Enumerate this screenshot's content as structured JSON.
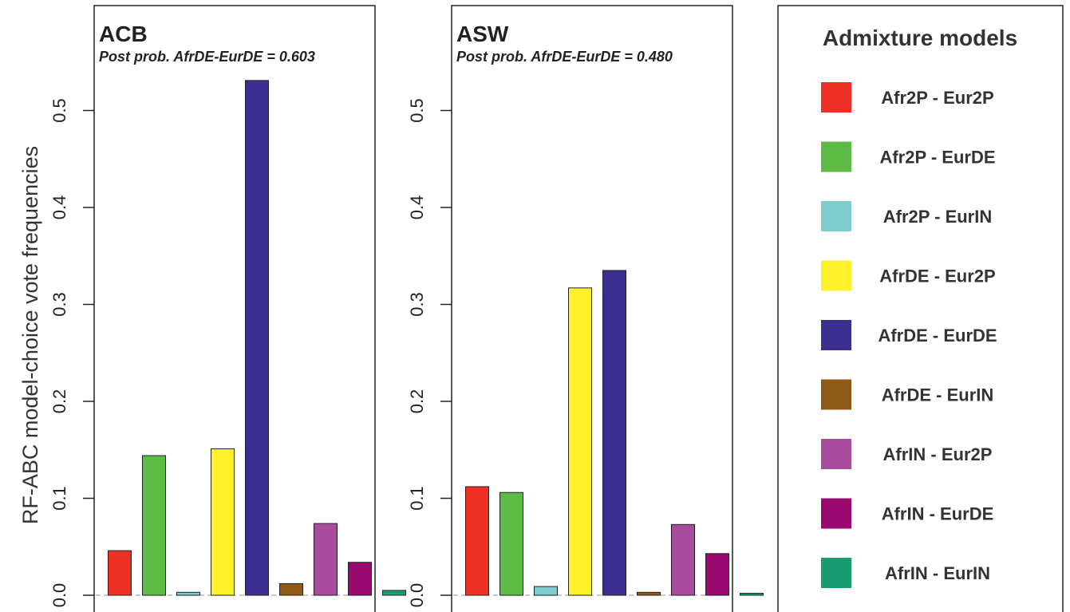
{
  "figure": {
    "ylabel": "RF-ABC model-choice vote frequencies"
  },
  "legend": {
    "title": "Admixture models",
    "items": [
      {
        "label": "Afr2P - Eur2P",
        "color": "#ee3124"
      },
      {
        "label": "Afr2P - EurDE",
        "color": "#5dbb46"
      },
      {
        "label": "Afr2P - EurIN",
        "color": "#7fcdcd"
      },
      {
        "label": "AfrDE - Eur2P",
        "color": "#fff12b"
      },
      {
        "label": "AfrDE - EurDE",
        "color": "#3a2f90"
      },
      {
        "label": "AfrDE - EurIN",
        "color": "#8f5a17"
      },
      {
        "label": "AfrIN - Eur2P",
        "color": "#a84d9e"
      },
      {
        "label": "AfrIN - EurDE",
        "color": "#98086e"
      },
      {
        "label": "AfrIN - EurIN",
        "color": "#1a9c72"
      }
    ]
  },
  "chart_data": [
    {
      "type": "bar",
      "title": "ACB",
      "subtitle": "Post prob. AfrDE-EurDE = 0.603",
      "categories": [
        "Afr2P - Eur2P",
        "Afr2P - EurDE",
        "Afr2P - EurIN",
        "AfrDE - Eur2P",
        "AfrDE - EurDE",
        "AfrDE - EurIN",
        "AfrIN - Eur2P",
        "AfrIN - EurDE",
        "AfrIN - EurIN"
      ],
      "values": [
        0.046,
        0.144,
        0.003,
        0.151,
        0.531,
        0.012,
        0.074,
        0.034,
        0.005
      ],
      "ylim": [
        0,
        0.56
      ],
      "yticks": [
        "0.0",
        "0.1",
        "0.2",
        "0.3",
        "0.4",
        "0.5"
      ],
      "ylabel": "RF-ABC model-choice vote frequencies",
      "grid": false
    },
    {
      "type": "bar",
      "title": "ASW",
      "subtitle": "Post prob. AfrDE-EurDE = 0.480",
      "categories": [
        "Afr2P - Eur2P",
        "Afr2P - EurDE",
        "Afr2P - EurIN",
        "AfrDE - Eur2P",
        "AfrDE - EurDE",
        "AfrDE - EurIN",
        "AfrIN - Eur2P",
        "AfrIN - EurDE",
        "AfrIN - EurIN"
      ],
      "values": [
        0.112,
        0.106,
        0.009,
        0.317,
        0.335,
        0.003,
        0.073,
        0.043,
        0.002
      ],
      "ylim": [
        0,
        0.56
      ],
      "yticks": [
        "0.0",
        "0.1",
        "0.2",
        "0.3",
        "0.4",
        "0.5"
      ],
      "grid": false
    }
  ]
}
